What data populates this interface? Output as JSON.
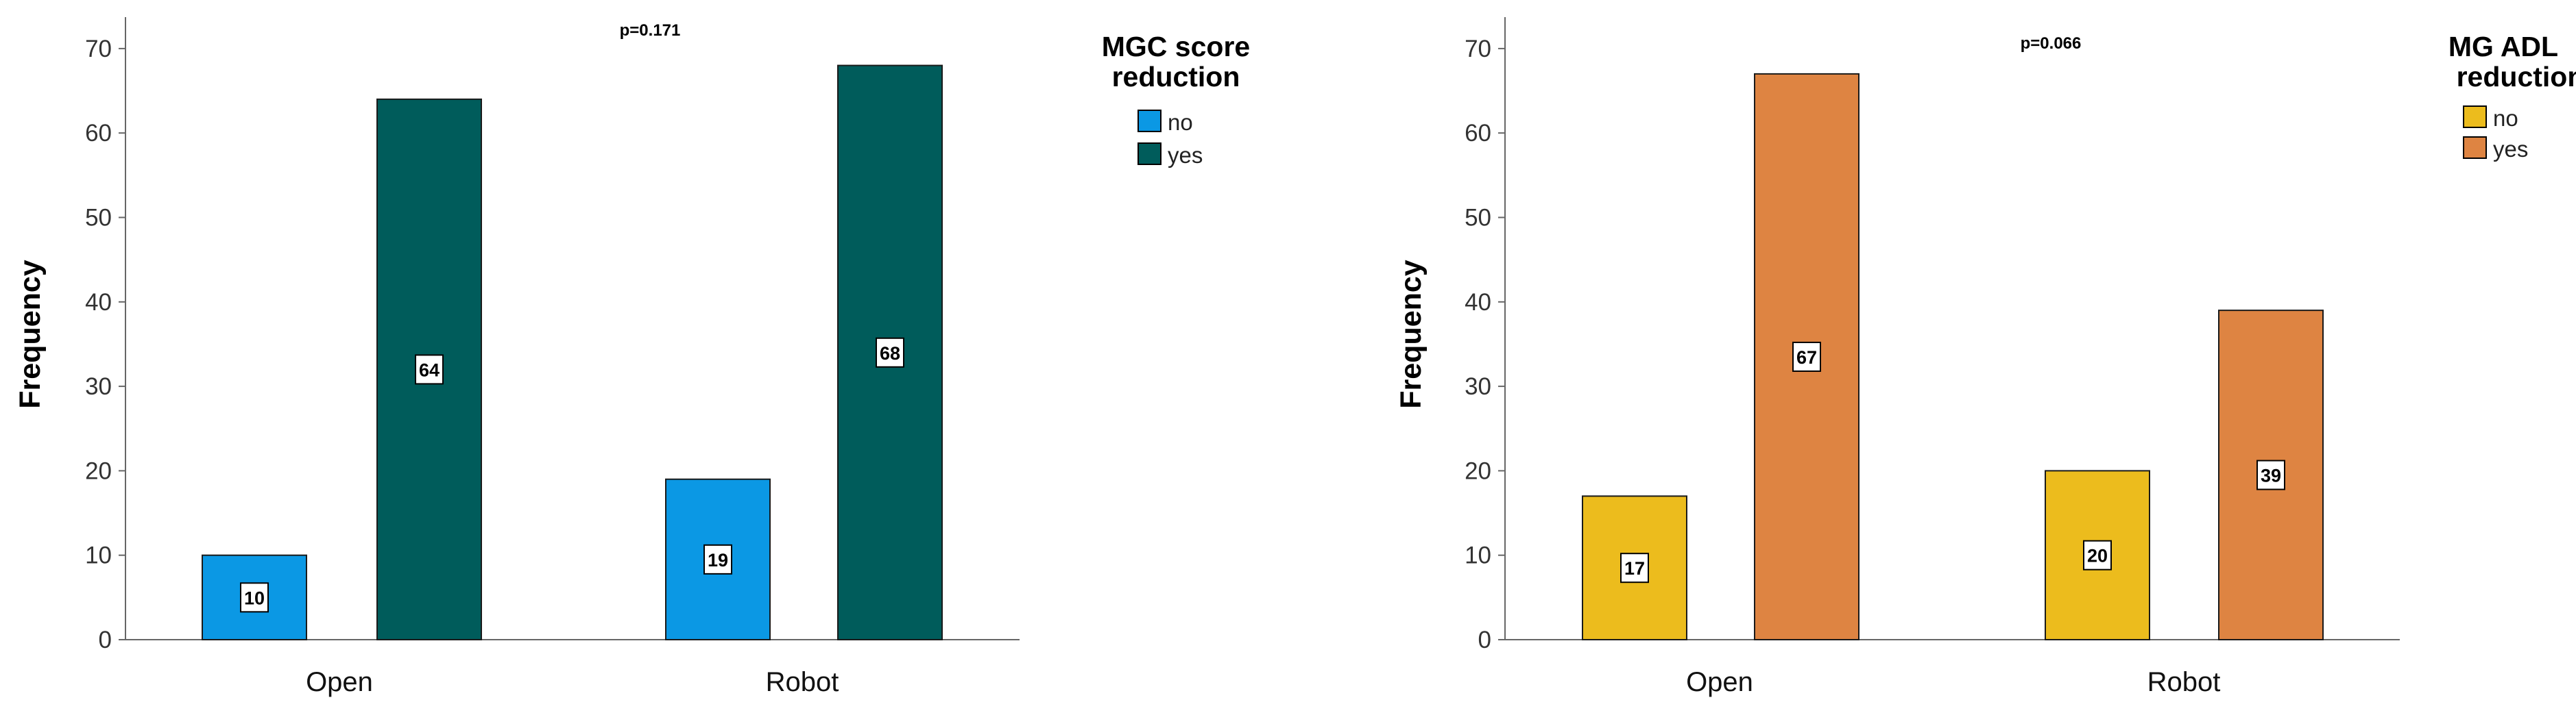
{
  "chart_data": [
    {
      "type": "bar",
      "ylabel": "Frequency",
      "annotation": "p=0.171",
      "legend": {
        "title": [
          "MGC score",
          "reduction"
        ],
        "placement": "right"
      },
      "categories": [
        "Open",
        "Robot"
      ],
      "ylim": [
        0,
        74
      ],
      "yticks": [
        "0",
        "10",
        "20",
        "30",
        "40",
        "50",
        "60",
        "70"
      ],
      "series": [
        {
          "name": "no",
          "color": "#0b98e4",
          "values": [
            10,
            19
          ],
          "labels": [
            "10",
            "19"
          ]
        },
        {
          "name": "yes",
          "color": "#005c5b",
          "values": [
            64,
            68
          ],
          "labels": [
            "64",
            "68"
          ]
        }
      ]
    },
    {
      "type": "bar",
      "ylabel": "Frequency",
      "annotation": "p=0.066",
      "legend": {
        "title": [
          "MG ADL",
          "reduction"
        ],
        "placement": "right"
      },
      "categories": [
        "Open",
        "Robot"
      ],
      "ylim": [
        0,
        74
      ],
      "yticks": [
        "0",
        "10",
        "20",
        "30",
        "40",
        "50",
        "60",
        "70"
      ],
      "series": [
        {
          "name": "no",
          "color": "#ecbc1d",
          "values": [
            17,
            20
          ],
          "labels": [
            "17",
            "20"
          ]
        },
        {
          "name": "yes",
          "color": "#de8442",
          "values": [
            67,
            39
          ],
          "labels": [
            "67",
            "39"
          ]
        }
      ]
    }
  ]
}
